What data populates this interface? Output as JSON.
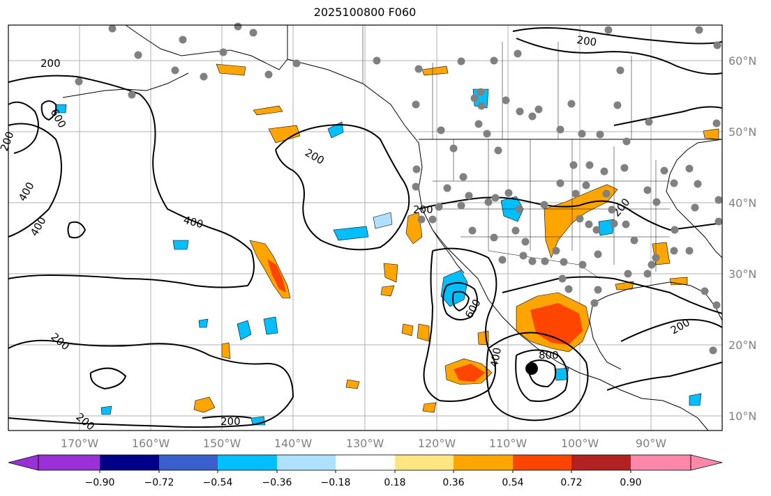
{
  "title": "2025100800 F060",
  "map": {
    "lat_labels": [
      "60°N",
      "50°N",
      "40°N",
      "30°N",
      "20°N",
      "10°N"
    ],
    "lon_labels": [
      "170°W",
      "160°W",
      "150°W",
      "140°W",
      "130°W",
      "120°W",
      "110°W",
      "100°W",
      "90°W"
    ],
    "contour_labels": [
      "200",
      "600",
      "200",
      "400",
      "400",
      "200",
      "200",
      "400",
      "200",
      "200",
      "200",
      "200",
      "200",
      "600",
      "400",
      "800",
      "200"
    ]
  },
  "colorbar": {
    "ticks": [
      "−0.90",
      "−0.72",
      "−0.54",
      "−0.36",
      "−0.18",
      "0.18",
      "0.36",
      "0.54",
      "0.72",
      "0.90"
    ],
    "colors": [
      "#9b30d9",
      "#00008b",
      "#3a5fcd",
      "#00bfff",
      "#b0e0ff",
      "#ffffff",
      "#ffe680",
      "#ffa500",
      "#ff4500",
      "#b22222",
      "#ff88aa"
    ]
  },
  "colors": {
    "positive_low": "#ffe680",
    "positive_mid": "#ffa500",
    "positive_high": "#ff4500",
    "negative_low": "#b0e0ff",
    "negative_mid": "#00bfff",
    "station": "#808080",
    "grid": "#b0b0b0"
  }
}
